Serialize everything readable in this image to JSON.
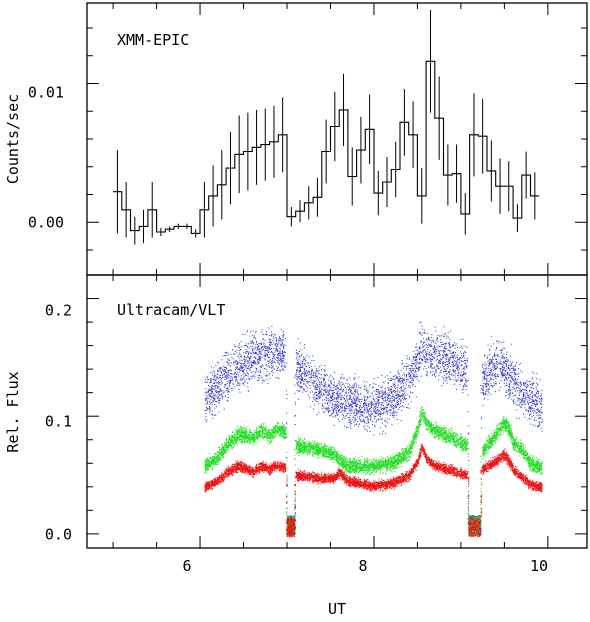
{
  "chart_data": [
    {
      "type": "line",
      "panel_label": "XMM-EPIC",
      "ylabel": "Counts/sec",
      "xlim": [
        4.7,
        10.45
      ],
      "ylim": [
        -0.0038,
        0.0158
      ],
      "x_ticks": [
        6,
        8,
        10
      ],
      "y_ticks": [
        0.0,
        0.01
      ],
      "y_tick_labels": [
        "0.00",
        "0.01"
      ],
      "grid": false,
      "style": "step-with-error-bars",
      "bin_width": 0.1,
      "bins": [
        {
          "x": 5.05,
          "y": 0.0022,
          "err": 0.003
        },
        {
          "x": 5.15,
          "y": 0.0009,
          "err": 0.002
        },
        {
          "x": 5.25,
          "y": -0.0006,
          "err": 0.001
        },
        {
          "x": 5.35,
          "y": -0.0003,
          "err": 0.0012
        },
        {
          "x": 5.45,
          "y": 0.0009,
          "err": 0.002
        },
        {
          "x": 5.55,
          "y": -0.0007,
          "err": 0.0003
        },
        {
          "x": 5.65,
          "y": -0.0005,
          "err": 0.0002
        },
        {
          "x": 5.75,
          "y": -0.0003,
          "err": 0.0002
        },
        {
          "x": 5.85,
          "y": -0.0003,
          "err": 0.0002
        },
        {
          "x": 5.95,
          "y": -0.0008,
          "err": 0.0003
        },
        {
          "x": 6.05,
          "y": 0.0009,
          "err": 0.002
        },
        {
          "x": 6.15,
          "y": 0.0019,
          "err": 0.0022
        },
        {
          "x": 6.25,
          "y": 0.0027,
          "err": 0.0025
        },
        {
          "x": 6.35,
          "y": 0.0039,
          "err": 0.0026
        },
        {
          "x": 6.45,
          "y": 0.0049,
          "err": 0.0028
        },
        {
          "x": 6.55,
          "y": 0.0051,
          "err": 0.0028
        },
        {
          "x": 6.65,
          "y": 0.0054,
          "err": 0.0027
        },
        {
          "x": 6.75,
          "y": 0.0056,
          "err": 0.0026
        },
        {
          "x": 6.85,
          "y": 0.0058,
          "err": 0.0026
        },
        {
          "x": 6.95,
          "y": 0.0063,
          "err": 0.0027
        },
        {
          "x": 7.05,
          "y": 0.0004,
          "err": 0.0007
        },
        {
          "x": 7.15,
          "y": 0.0008,
          "err": 0.0008
        },
        {
          "x": 7.25,
          "y": 0.0014,
          "err": 0.0012
        },
        {
          "x": 7.35,
          "y": 0.0018,
          "err": 0.0014
        },
        {
          "x": 7.45,
          "y": 0.0051,
          "err": 0.0023
        },
        {
          "x": 7.55,
          "y": 0.0069,
          "err": 0.0025
        },
        {
          "x": 7.65,
          "y": 0.0081,
          "err": 0.0026
        },
        {
          "x": 7.75,
          "y": 0.0033,
          "err": 0.0021
        },
        {
          "x": 7.85,
          "y": 0.0052,
          "err": 0.0024
        },
        {
          "x": 7.95,
          "y": 0.0067,
          "err": 0.0025
        },
        {
          "x": 8.05,
          "y": 0.0021,
          "err": 0.0016
        },
        {
          "x": 8.15,
          "y": 0.0029,
          "err": 0.0018
        },
        {
          "x": 8.25,
          "y": 0.0038,
          "err": 0.002
        },
        {
          "x": 8.35,
          "y": 0.0072,
          "err": 0.0024
        },
        {
          "x": 8.45,
          "y": 0.0063,
          "err": 0.0024
        },
        {
          "x": 8.55,
          "y": 0.0019,
          "err": 0.002
        },
        {
          "x": 8.65,
          "y": 0.0116,
          "err": 0.0037
        },
        {
          "x": 8.75,
          "y": 0.0075,
          "err": 0.003
        },
        {
          "x": 8.85,
          "y": 0.0034,
          "err": 0.0022
        },
        {
          "x": 8.95,
          "y": 0.0035,
          "err": 0.0021
        },
        {
          "x": 9.05,
          "y": 0.0006,
          "err": 0.0015
        },
        {
          "x": 9.15,
          "y": 0.0063,
          "err": 0.003
        },
        {
          "x": 9.25,
          "y": 0.0062,
          "err": 0.0027
        },
        {
          "x": 9.35,
          "y": 0.0037,
          "err": 0.0022
        },
        {
          "x": 9.45,
          "y": 0.0026,
          "err": 0.002
        },
        {
          "x": 9.55,
          "y": 0.0026,
          "err": 0.0018
        },
        {
          "x": 9.65,
          "y": 0.0003,
          "err": 0.001
        },
        {
          "x": 9.75,
          "y": 0.0034,
          "err": 0.0017
        },
        {
          "x": 9.85,
          "y": 0.0019,
          "err": 0.0017
        }
      ]
    },
    {
      "type": "scatter",
      "panel_label": "Ultracam/VLT",
      "ylabel": "Rel. Flux",
      "xlabel": "UT",
      "xlim": [
        4.7,
        10.45
      ],
      "ylim": [
        -0.012,
        0.22
      ],
      "x_ticks": [
        6,
        8,
        10
      ],
      "x_tick_labels": [
        "6",
        "8",
        "10"
      ],
      "y_ticks": [
        0.0,
        0.1,
        0.2
      ],
      "y_tick_labels": [
        "0.0",
        "0.1",
        "0.2"
      ],
      "grid": false,
      "observing_windows": [
        [
          6.05,
          6.98
        ],
        [
          7.1,
          9.07
        ],
        [
          9.24,
          9.93
        ]
      ],
      "gap_windows": [
        [
          6.98,
          7.1
        ],
        [
          9.07,
          9.24
        ]
      ],
      "gap_level": 0.008,
      "series": [
        {
          "color": "#2b33d6",
          "point_spread": 0.01,
          "x": [
            6.05,
            6.2,
            6.4,
            6.6,
            6.75,
            6.9,
            6.98,
            7.1,
            7.3,
            7.5,
            7.7,
            7.9,
            8.1,
            8.3,
            8.45,
            8.55,
            8.6,
            8.8,
            9.0,
            9.07,
            9.24,
            9.35,
            9.45,
            9.55,
            9.7,
            9.85,
            9.93
          ],
          "y": [
            0.115,
            0.125,
            0.14,
            0.15,
            0.152,
            0.155,
            0.152,
            0.142,
            0.128,
            0.117,
            0.112,
            0.108,
            0.11,
            0.122,
            0.138,
            0.16,
            0.155,
            0.152,
            0.142,
            0.14,
            0.13,
            0.14,
            0.145,
            0.135,
            0.12,
            0.112,
            0.105
          ]
        },
        {
          "color": "#22dd22",
          "point_spread": 0.003,
          "x": [
            6.05,
            6.2,
            6.35,
            6.45,
            6.6,
            6.7,
            6.8,
            6.85,
            6.9,
            6.98,
            7.1,
            7.4,
            7.55,
            7.6,
            7.7,
            8.0,
            8.2,
            8.4,
            8.5,
            8.55,
            8.6,
            8.7,
            8.9,
            9.07,
            9.24,
            9.4,
            9.5,
            9.55,
            9.6,
            9.7,
            9.8,
            9.93
          ],
          "y": [
            0.058,
            0.065,
            0.08,
            0.085,
            0.082,
            0.088,
            0.083,
            0.088,
            0.09,
            0.086,
            0.075,
            0.071,
            0.068,
            0.062,
            0.058,
            0.058,
            0.06,
            0.07,
            0.09,
            0.104,
            0.095,
            0.088,
            0.082,
            0.075,
            0.07,
            0.085,
            0.095,
            0.09,
            0.078,
            0.072,
            0.06,
            0.057
          ]
        },
        {
          "color": "#ee1111",
          "point_spread": 0.002,
          "x": [
            6.05,
            6.2,
            6.35,
            6.45,
            6.6,
            6.7,
            6.8,
            6.85,
            6.9,
            6.98,
            7.1,
            7.4,
            7.55,
            7.6,
            7.7,
            8.0,
            8.2,
            8.4,
            8.5,
            8.55,
            8.6,
            8.7,
            8.9,
            9.07,
            9.24,
            9.4,
            9.5,
            9.55,
            9.6,
            9.7,
            9.8,
            9.93
          ],
          "y": [
            0.04,
            0.045,
            0.055,
            0.058,
            0.053,
            0.058,
            0.055,
            0.058,
            0.058,
            0.056,
            0.05,
            0.047,
            0.048,
            0.052,
            0.045,
            0.041,
            0.043,
            0.05,
            0.062,
            0.074,
            0.065,
            0.058,
            0.054,
            0.05,
            0.055,
            0.062,
            0.068,
            0.062,
            0.055,
            0.048,
            0.042,
            0.04
          ]
        }
      ]
    }
  ]
}
